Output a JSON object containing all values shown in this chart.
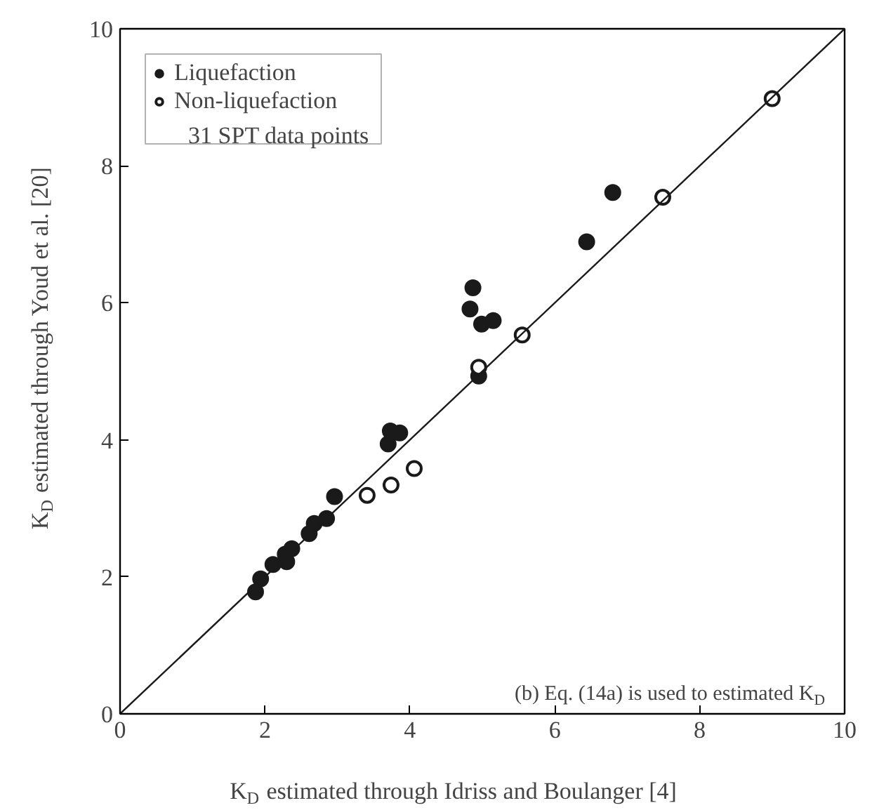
{
  "chart_data": {
    "type": "scatter",
    "xlabel": "K$_{D}$ estimated through Idriss and Boulanger [4]",
    "ylabel": "K$_{D}$ estimated through Youd et al. [20]",
    "xlim": [
      0,
      10
    ],
    "ylim": [
      0,
      10
    ],
    "xticks": [
      0,
      2,
      4,
      6,
      8,
      10
    ],
    "yticks": [
      0,
      2,
      4,
      6,
      8,
      10
    ],
    "grid": false,
    "legend": "top left",
    "marker": "circle",
    "annotations": [
      "31 SPT data points",
      "(b) Eq. (14a) is used to estimated K$_{D}$"
    ],
    "series": [
      {
        "name": "Liquefaction",
        "color": "#1a1a1a",
        "x": [
          1.87,
          1.94,
          2.11,
          2.3,
          2.28,
          2.37,
          2.61,
          2.68,
          2.85,
          2.96,
          3.7,
          3.73,
          3.86,
          4.95,
          4.87,
          4.83,
          4.99,
          5.15,
          6.44,
          6.8
        ],
        "values": [
          1.78,
          1.97,
          2.18,
          2.22,
          2.33,
          2.41,
          2.63,
          2.78,
          2.85,
          3.17,
          3.94,
          4.13,
          4.1,
          4.93,
          6.22,
          5.91,
          5.69,
          5.74,
          6.89,
          7.61
        ]
      },
      {
        "name": "Non-liquefaction",
        "color": "#1a1a1a",
        "x": [
          3.41,
          3.74,
          4.06,
          4.95,
          5.55,
          7.49,
          9.0
        ],
        "values": [
          3.19,
          3.34,
          3.58,
          5.06,
          5.53,
          7.54,
          8.98
        ]
      },
      {
        "type": "line",
        "color": "#1a1a1a",
        "marker": "none",
        "x": [
          0,
          10
        ],
        "values": [
          0,
          10
        ]
      }
    ]
  }
}
